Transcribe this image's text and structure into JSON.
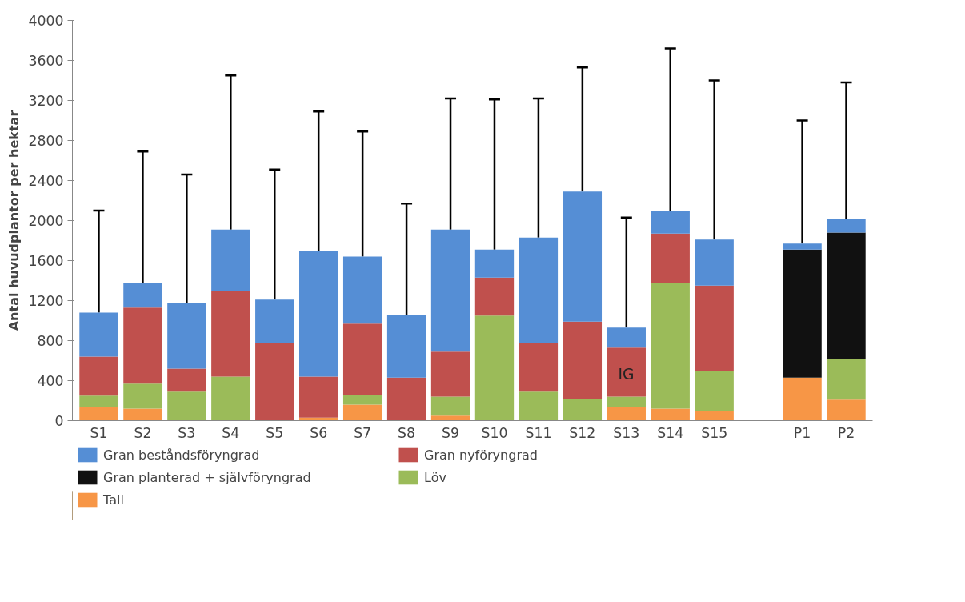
{
  "chart_data": {
    "type": "bar",
    "stacked": true,
    "ylabel": "Antal huvudplantor per hektar",
    "categories": [
      "S1",
      "S2",
      "S3",
      "S4",
      "S5",
      "S6",
      "S7",
      "S8",
      "S9",
      "S10",
      "S11",
      "S12",
      "S13",
      "S14",
      "S15",
      null,
      "P1",
      "P2"
    ],
    "series": [
      {
        "name": "Tall",
        "color": "#f79646",
        "values": [
          140,
          120,
          0,
          0,
          0,
          30,
          160,
          0,
          50,
          0,
          0,
          0,
          140,
          120,
          100,
          null,
          430,
          210
        ]
      },
      {
        "name": "Löv",
        "color": "#9bbb59",
        "values": [
          110,
          250,
          290,
          440,
          0,
          0,
          100,
          0,
          190,
          1050,
          290,
          220,
          100,
          1260,
          400,
          null,
          0,
          410
        ]
      },
      {
        "name": "Gran planterad + självföryngrad",
        "color": "#111111",
        "values": [
          0,
          0,
          0,
          0,
          0,
          0,
          0,
          0,
          0,
          0,
          0,
          0,
          0,
          0,
          0,
          null,
          1280,
          1260
        ]
      },
      {
        "name": "Gran nyföryngrad",
        "color": "#c0504d",
        "values": [
          390,
          760,
          230,
          860,
          780,
          410,
          710,
          430,
          450,
          380,
          490,
          770,
          490,
          490,
          850,
          null,
          0,
          0
        ]
      },
      {
        "name": "Gran beståndsföryngrad",
        "color": "#558ed5",
        "values": [
          440,
          250,
          660,
          610,
          430,
          1260,
          670,
          630,
          1220,
          280,
          1050,
          1300,
          200,
          230,
          460,
          null,
          60,
          140
        ],
        "errors": [
          [
            1080,
            2100
          ],
          [
            1380,
            2690
          ],
          [
            1180,
            2460
          ],
          [
            1910,
            3450
          ],
          [
            1210,
            2510
          ],
          [
            1700,
            3090
          ],
          [
            1640,
            2890
          ],
          [
            1060,
            2170
          ],
          [
            1910,
            3220
          ],
          [
            1710,
            3210
          ],
          [
            1830,
            3220
          ],
          [
            2290,
            3530
          ],
          [
            930,
            2030
          ],
          [
            2100,
            3720
          ],
          [
            1810,
            3400
          ],
          null,
          [
            1770,
            3000
          ],
          [
            2020,
            3380
          ]
        ]
      }
    ],
    "ylim": [
      0,
      4000
    ],
    "yticks": [
      0,
      400,
      800,
      1200,
      1600,
      2000,
      2400,
      2800,
      3200,
      3600,
      4000
    ],
    "grid": false,
    "legend": "bottom",
    "annotations": [
      "IG"
    ]
  }
}
